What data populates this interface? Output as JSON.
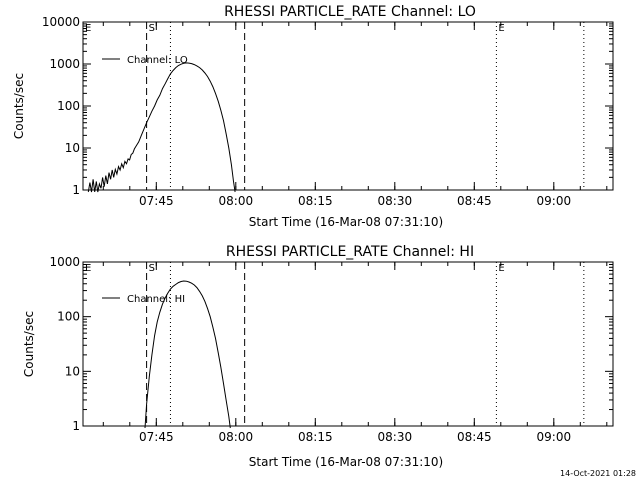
{
  "chart_data": [
    {
      "type": "line",
      "title": "RHESSI PARTICLE_RATE Channel: LO",
      "xlabel": "Start Time (16-Mar-08 07:31:10)",
      "ylabel": "Counts/sec",
      "yscale": "log",
      "xlim_minutes": [
        0,
        100
      ],
      "ylim": [
        1,
        10000
      ],
      "xticks": [
        {
          "label": "07:45",
          "minutes": 13.83
        },
        {
          "label": "08:00",
          "minutes": 28.83
        },
        {
          "label": "08:15",
          "minutes": 43.83
        },
        {
          "label": "08:30",
          "minutes": 58.83
        },
        {
          "label": "08:45",
          "minutes": 73.83
        },
        {
          "label": "09:00",
          "minutes": 88.83
        }
      ],
      "yticks": [
        {
          "label": "1",
          "value": 1
        },
        {
          "label": "10",
          "value": 10
        },
        {
          "label": "100",
          "value": 100
        },
        {
          "label": "1000",
          "value": 1000
        },
        {
          "label": "10000",
          "value": 10000
        }
      ],
      "legend": "Channel: LO",
      "legend_position": "top-left",
      "markers": [
        {
          "label": "E",
          "minutes": 0,
          "style": "none"
        },
        {
          "label": "S",
          "minutes": 12.0,
          "style": "dashed"
        },
        {
          "label": "",
          "minutes": 16.5,
          "style": "dotted"
        },
        {
          "label": "",
          "minutes": 30.5,
          "style": "dashed"
        },
        {
          "label": "E",
          "minutes": 78.0,
          "style": "dotted"
        },
        {
          "label": "",
          "minutes": 94.5,
          "style": "dotted"
        }
      ],
      "series": [
        {
          "name": "Channel: LO",
          "points": [
            [
              1.0,
              0.6
            ],
            [
              1.3,
              1.5
            ],
            [
              1.6,
              0.8
            ],
            [
              1.9,
              1.8
            ],
            [
              2.2,
              0.9
            ],
            [
              2.5,
              1.6
            ],
            [
              2.8,
              0.7
            ],
            [
              3.1,
              1.4
            ],
            [
              3.4,
              1.1
            ],
            [
              3.7,
              2.0
            ],
            [
              4.0,
              1.2
            ],
            [
              4.3,
              2.2
            ],
            [
              4.6,
              1.4
            ],
            [
              4.9,
              2.6
            ],
            [
              5.2,
              1.8
            ],
            [
              5.5,
              3.0
            ],
            [
              5.8,
              2.0
            ],
            [
              6.1,
              3.1
            ],
            [
              6.4,
              2.4
            ],
            [
              6.7,
              3.6
            ],
            [
              7.0,
              3.0
            ],
            [
              7.3,
              4.2
            ],
            [
              7.6,
              3.4
            ],
            [
              7.9,
              4.8
            ],
            [
              8.2,
              4.2
            ],
            [
              8.5,
              5.5
            ],
            [
              8.8,
              5.2
            ],
            [
              9.1,
              7.0
            ],
            [
              9.4,
              7.5
            ],
            [
              9.7,
              9.5
            ],
            [
              10.0,
              11
            ],
            [
              10.5,
              14
            ],
            [
              11.0,
              20
            ],
            [
              11.5,
              28
            ],
            [
              12.0,
              40
            ],
            [
              12.5,
              55
            ],
            [
              13.0,
              75
            ],
            [
              13.5,
              100
            ],
            [
              14.0,
              140
            ],
            [
              14.5,
              180
            ],
            [
              15.0,
              260
            ],
            [
              15.5,
              340
            ],
            [
              16.0,
              450
            ],
            [
              16.5,
              580
            ],
            [
              17.0,
              700
            ],
            [
              17.5,
              820
            ],
            [
              18.0,
              920
            ],
            [
              18.5,
              990
            ],
            [
              19.0,
              1040
            ],
            [
              19.5,
              1060
            ],
            [
              20.0,
              1050
            ],
            [
              20.5,
              1020
            ],
            [
              21.0,
              970
            ],
            [
              21.5,
              900
            ],
            [
              22.0,
              820
            ],
            [
              22.5,
              720
            ],
            [
              23.0,
              610
            ],
            [
              23.5,
              500
            ],
            [
              24.0,
              390
            ],
            [
              24.5,
              290
            ],
            [
              25.0,
              200
            ],
            [
              25.5,
              130
            ],
            [
              26.0,
              80
            ],
            [
              26.5,
              45
            ],
            [
              27.0,
              22
            ],
            [
              27.5,
              10
            ],
            [
              28.0,
              4
            ],
            [
              28.4,
              1.6
            ],
            [
              28.7,
              0.8
            ]
          ]
        }
      ]
    },
    {
      "type": "line",
      "title": "RHESSI PARTICLE_RATE Channel: HI",
      "xlabel": "Start Time (16-Mar-08 07:31:10)",
      "ylabel": "Counts/sec",
      "yscale": "log",
      "xlim_minutes": [
        0,
        100
      ],
      "ylim": [
        1,
        1000
      ],
      "xticks": [
        {
          "label": "07:45",
          "minutes": 13.83
        },
        {
          "label": "08:00",
          "minutes": 28.83
        },
        {
          "label": "08:15",
          "minutes": 43.83
        },
        {
          "label": "08:30",
          "minutes": 58.83
        },
        {
          "label": "08:45",
          "minutes": 73.83
        },
        {
          "label": "09:00",
          "minutes": 88.83
        }
      ],
      "yticks": [
        {
          "label": "1",
          "value": 1
        },
        {
          "label": "10",
          "value": 10
        },
        {
          "label": "100",
          "value": 100
        },
        {
          "label": "1000",
          "value": 1000
        }
      ],
      "legend": "Channel: HI",
      "legend_position": "top-left",
      "markers": [
        {
          "label": "E",
          "minutes": 0,
          "style": "none"
        },
        {
          "label": "S",
          "minutes": 12.0,
          "style": "dashed"
        },
        {
          "label": "",
          "minutes": 16.5,
          "style": "dotted"
        },
        {
          "label": "",
          "minutes": 30.5,
          "style": "dashed"
        },
        {
          "label": "E",
          "minutes": 78.0,
          "style": "dotted"
        },
        {
          "label": "",
          "minutes": 94.5,
          "style": "dotted"
        }
      ],
      "series": [
        {
          "name": "Channel: HI",
          "points": [
            [
              11.7,
              0.8
            ],
            [
              12.0,
              2.5
            ],
            [
              12.5,
              8
            ],
            [
              13.0,
              20
            ],
            [
              13.5,
              45
            ],
            [
              14.0,
              80
            ],
            [
              14.5,
              120
            ],
            [
              15.0,
              170
            ],
            [
              15.5,
              220
            ],
            [
              16.0,
              270
            ],
            [
              16.5,
              320
            ],
            [
              17.0,
              360
            ],
            [
              17.5,
              390
            ],
            [
              18.0,
              420
            ],
            [
              18.5,
              440
            ],
            [
              19.0,
              450
            ],
            [
              19.5,
              445
            ],
            [
              20.0,
              430
            ],
            [
              20.5,
              410
            ],
            [
              21.0,
              380
            ],
            [
              21.5,
              340
            ],
            [
              22.0,
              290
            ],
            [
              22.5,
              240
            ],
            [
              23.0,
              190
            ],
            [
              23.5,
              140
            ],
            [
              24.0,
              100
            ],
            [
              24.5,
              65
            ],
            [
              25.0,
              40
            ],
            [
              25.5,
              22
            ],
            [
              26.0,
              12
            ],
            [
              26.5,
              6
            ],
            [
              27.0,
              3
            ],
            [
              27.5,
              1.5
            ],
            [
              27.8,
              0.8
            ]
          ]
        }
      ]
    }
  ],
  "footer": {
    "timestamp": "14-Oct-2021 01:28"
  }
}
